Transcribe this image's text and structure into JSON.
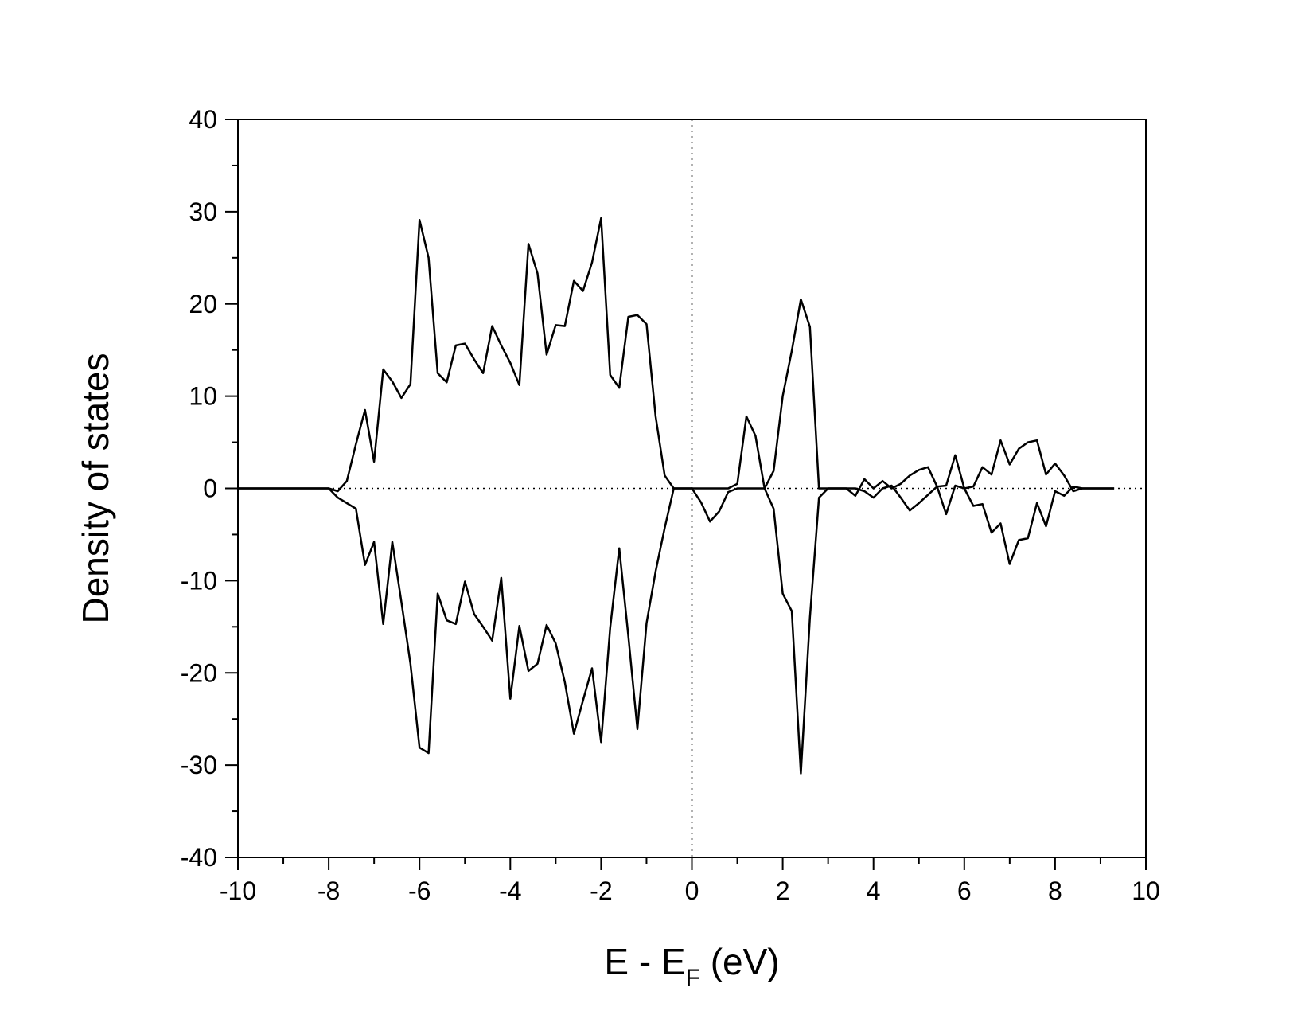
{
  "chart_data": {
    "type": "line",
    "title": "",
    "xlabel": {
      "main": "E - E",
      "sub": "F",
      "tail": " (eV)"
    },
    "ylabel": "Density of states",
    "xlim": [
      -10,
      10
    ],
    "ylim": [
      -40,
      40
    ],
    "x_major_ticks": [
      -10,
      -8,
      -6,
      -4,
      -2,
      0,
      2,
      4,
      6,
      8,
      10
    ],
    "x_tick_labels": [
      "-10",
      "-8",
      "-6",
      "-4",
      "-2",
      "0",
      "2",
      "4",
      "6",
      "8",
      "10"
    ],
    "y_major_ticks": [
      -40,
      -30,
      -20,
      -10,
      0,
      10,
      20,
      30,
      40
    ],
    "y_tick_labels": [
      "-40",
      "-30",
      "-20",
      "-10",
      "0",
      "10",
      "20",
      "30",
      "40"
    ],
    "x_minor_step": 1,
    "y_minor_step": 5,
    "grid": false,
    "legend": "none",
    "reference_lines": [
      {
        "orientation": "horizontal",
        "value": 0,
        "style": "dotted"
      },
      {
        "orientation": "vertical",
        "value": 0,
        "style": "dotted"
      }
    ],
    "series": [
      {
        "color": "#000000",
        "x": [
          -10,
          -8.0,
          -7.8,
          -7.6,
          -7.4,
          -7.2,
          -7.0,
          -6.8,
          -6.6,
          -6.4,
          -6.2,
          -6.0,
          -5.8,
          -5.6,
          -5.4,
          -5.2,
          -5.0,
          -4.8,
          -4.6,
          -4.4,
          -4.2,
          -4.0,
          -3.8,
          -3.6,
          -3.4,
          -3.2,
          -3.0,
          -2.8,
          -2.6,
          -2.4,
          -2.2,
          -2.0,
          -1.8,
          -1.6,
          -1.4,
          -1.2,
          -1.0,
          -0.8,
          -0.6,
          -0.4,
          -0.2,
          0.0,
          0.2,
          0.4,
          0.6,
          0.8,
          1.0,
          1.2,
          1.4,
          1.6,
          1.8,
          2.0,
          2.2,
          2.4,
          2.6,
          2.8,
          3.0,
          3.2,
          3.4,
          3.6,
          3.8,
          4.0,
          4.2,
          4.4,
          4.6,
          4.8,
          5.0,
          5.2,
          5.4,
          5.6,
          5.8,
          6.0,
          6.2,
          6.4,
          6.6,
          6.8,
          7.0,
          7.2,
          7.4,
          7.6,
          7.8,
          8.0,
          8.2,
          8.4,
          8.6,
          8.8,
          9.0,
          9.2,
          9.3
        ],
        "y": [
          0,
          0,
          -0.3,
          0.8,
          4.8,
          8.5,
          2.9,
          12.9,
          11.6,
          9.8,
          11.3,
          29.1,
          25.0,
          12.5,
          11.5,
          15.5,
          15.7,
          14.0,
          12.5,
          17.6,
          15.5,
          13.6,
          11.2,
          26.5,
          23.3,
          14.5,
          17.7,
          17.6,
          22.5,
          21.4,
          24.5,
          29.3,
          12.3,
          10.9,
          18.6,
          18.8,
          17.8,
          7.8,
          1.4,
          0,
          0,
          0,
          0,
          0,
          0,
          0,
          0.5,
          7.8,
          5.7,
          0,
          1.9,
          10.0,
          14.9,
          20.5,
          17.5,
          0,
          0,
          0,
          0,
          -0.8,
          1.0,
          0,
          0.8,
          0,
          0.5,
          1.4,
          2.0,
          2.3,
          0.2,
          0.3,
          3.6,
          0,
          0.2,
          2.3,
          1.5,
          5.2,
          2.6,
          4.3,
          5.0,
          5.2,
          1.5,
          2.7,
          1.4,
          -0.3,
          0,
          0,
          0,
          0,
          0
        ]
      },
      {
        "color": "#000000",
        "x": [
          -10,
          -8.0,
          -7.8,
          -7.6,
          -7.4,
          -7.2,
          -7.0,
          -6.8,
          -6.6,
          -6.4,
          -6.2,
          -6.0,
          -5.8,
          -5.6,
          -5.4,
          -5.2,
          -5.0,
          -4.8,
          -4.6,
          -4.4,
          -4.2,
          -4.0,
          -3.8,
          -3.6,
          -3.4,
          -3.2,
          -3.0,
          -2.8,
          -2.6,
          -2.4,
          -2.2,
          -2.0,
          -1.8,
          -1.6,
          -1.4,
          -1.2,
          -1.0,
          -0.8,
          -0.6,
          -0.4,
          -0.2,
          0.0,
          0.2,
          0.4,
          0.6,
          0.8,
          1.0,
          1.2,
          1.4,
          1.6,
          1.8,
          2.0,
          2.2,
          2.4,
          2.6,
          2.8,
          3.0,
          3.2,
          3.4,
          3.6,
          3.8,
          4.0,
          4.2,
          4.4,
          4.6,
          4.8,
          5.0,
          5.2,
          5.4,
          5.6,
          5.8,
          6.0,
          6.2,
          6.4,
          6.6,
          6.8,
          7.0,
          7.2,
          7.4,
          7.6,
          7.8,
          8.0,
          8.2,
          8.4,
          8.6,
          8.8,
          9.0,
          9.2,
          9.3
        ],
        "y": [
          0,
          0,
          -1.0,
          -1.6,
          -2.2,
          -8.3,
          -5.8,
          -14.7,
          -5.8,
          -12.3,
          -19.0,
          -28.1,
          -28.7,
          -11.4,
          -14.3,
          -14.7,
          -10.1,
          -13.6,
          -15.0,
          -16.5,
          -9.7,
          -22.8,
          -14.9,
          -19.8,
          -19.0,
          -14.8,
          -16.8,
          -21.0,
          -26.6,
          -23.0,
          -19.5,
          -27.5,
          -15.1,
          -6.5,
          -16.0,
          -26.1,
          -14.6,
          -9.0,
          -4.3,
          0,
          0,
          0,
          -1.5,
          -3.6,
          -2.5,
          -0.4,
          0,
          0,
          0,
          0,
          -2.2,
          -11.4,
          -13.3,
          -30.9,
          -14.0,
          -1.0,
          0,
          0,
          0,
          0,
          -0.3,
          -1.0,
          0,
          0.3,
          -1.0,
          -2.4,
          -1.6,
          -0.7,
          0.2,
          -2.8,
          0.3,
          0,
          -1.9,
          -1.7,
          -4.8,
          -3.8,
          -8.2,
          -5.6,
          -5.4,
          -1.6,
          -4.1,
          -0.3,
          -0.8,
          0.2,
          0,
          0,
          0,
          0,
          0
        ]
      }
    ]
  }
}
